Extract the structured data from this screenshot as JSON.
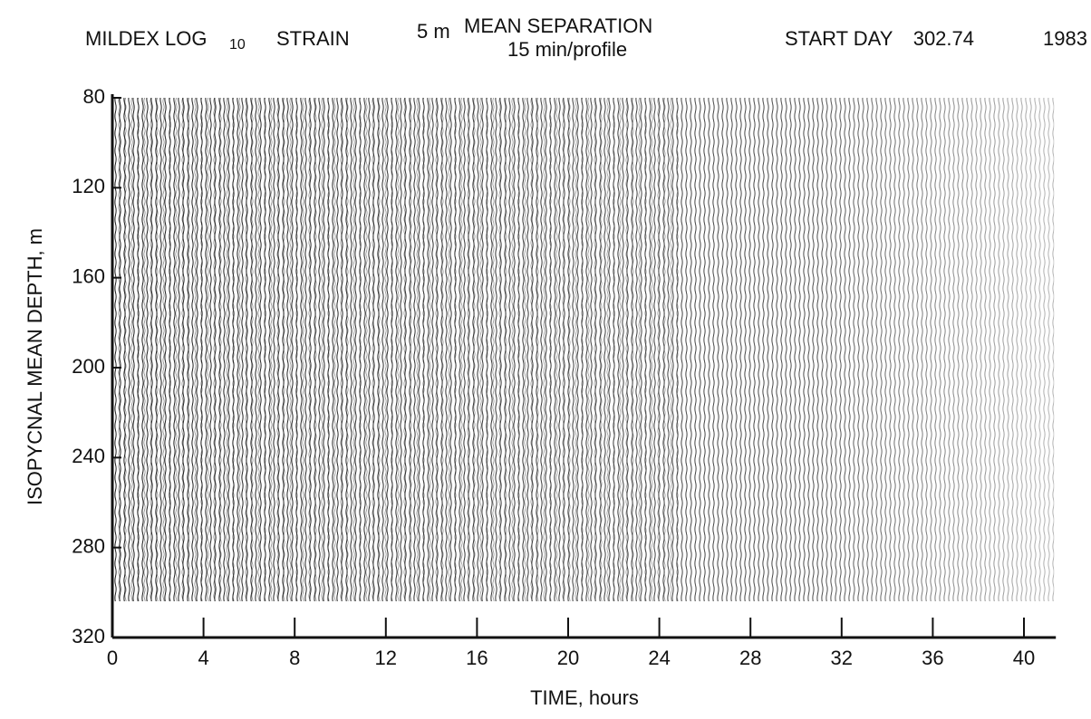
{
  "chart_data": {
    "type": "profile",
    "title_parts": [
      "MILDEX LOG",
      "10",
      "STRAIN",
      "5 m",
      "MEAN SEPARATION",
      "15 min/profile",
      "START DAY",
      "302.74",
      "1983"
    ],
    "x_label": "TIME,  hours",
    "y_label": "ISOPYCNAL MEAN DEPTH, m",
    "xlim": [
      0,
      41.4
    ],
    "xticks": [
      0,
      4,
      8,
      12,
      16,
      20,
      24,
      28,
      32,
      36,
      40
    ],
    "ylim": [
      80,
      320
    ],
    "yticks": [
      80,
      120,
      160,
      200,
      240,
      280,
      320
    ],
    "y_inverted": true,
    "color": "#111111"
  }
}
